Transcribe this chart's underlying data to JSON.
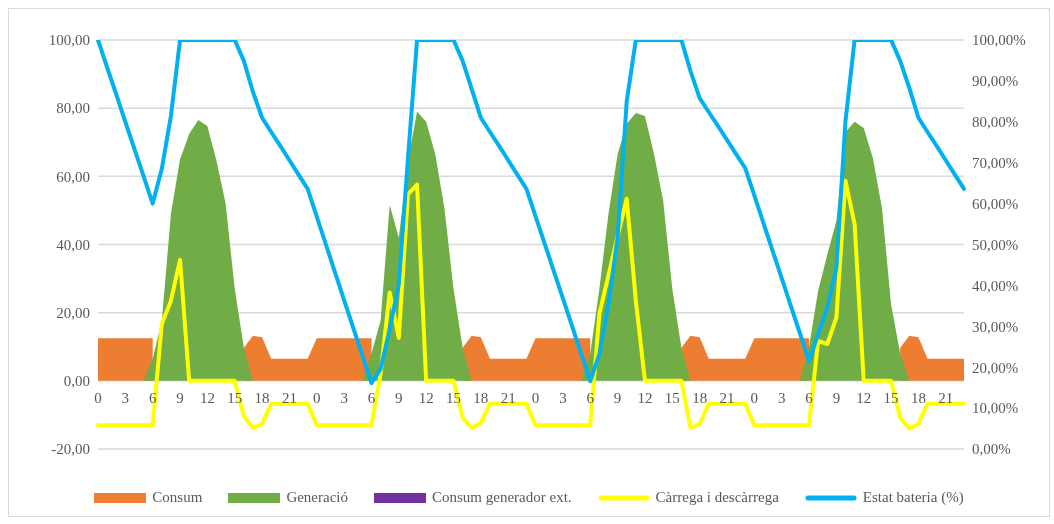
{
  "chart_data": {
    "type": "area",
    "categories": [
      "0",
      null,
      null,
      "3",
      null,
      null,
      "6",
      null,
      null,
      "9",
      null,
      null,
      "12",
      null,
      null,
      "15",
      null,
      null,
      "18",
      null,
      null,
      "21",
      null,
      null,
      "0",
      null,
      null,
      "3",
      null,
      null,
      "6",
      null,
      null,
      "9",
      null,
      null,
      "12",
      null,
      null,
      "15",
      null,
      null,
      "18",
      null,
      null,
      "21",
      null,
      null,
      "0",
      null,
      null,
      "3",
      null,
      null,
      "6",
      null,
      null,
      "9",
      null,
      null,
      "12",
      null,
      null,
      "15",
      null,
      null,
      "18",
      null,
      null,
      "21",
      null,
      null,
      "0",
      null,
      null,
      "3",
      null,
      null,
      "6",
      null,
      null,
      "9",
      null,
      null,
      "12",
      null,
      null,
      "15",
      null,
      null,
      "18",
      null,
      null,
      "21",
      null,
      null
    ],
    "series": [
      {
        "name": "Consum",
        "color": "#ed7d31",
        "values": [
          12.5,
          12.5,
          12.5,
          12.5,
          12.5,
          12.5,
          12.5,
          null,
          null,
          null,
          null,
          null,
          null,
          null,
          null,
          null,
          9.7,
          13.2,
          12.8,
          6.5,
          6.5,
          6.5,
          6.5,
          6.5,
          12.5,
          12.5,
          12.5,
          12.5,
          12.5,
          12.5,
          12.5,
          null,
          null,
          null,
          null,
          null,
          null,
          null,
          null,
          null,
          9.7,
          13.2,
          12.8,
          6.5,
          6.5,
          6.5,
          6.5,
          6.5,
          12.5,
          12.5,
          12.5,
          12.5,
          12.5,
          12.5,
          12.5,
          null,
          null,
          null,
          null,
          null,
          null,
          null,
          null,
          null,
          9.7,
          13.2,
          12.8,
          6.5,
          6.5,
          6.5,
          6.5,
          6.5,
          12.5,
          12.5,
          12.5,
          12.5,
          12.5,
          12.5,
          12.5,
          null,
          null,
          null,
          null,
          null,
          null,
          null,
          null,
          null,
          9.7,
          13.2,
          12.8,
          6.5,
          6.5,
          6.5,
          6.5,
          6.5
        ]
      },
      {
        "name": "Generació",
        "color": "#70ad47",
        "values": [
          0,
          0,
          0,
          0,
          0,
          0,
          6.4,
          17.6,
          49,
          65,
          72.4,
          76.5,
          74.8,
          64.5,
          52,
          27,
          9.7,
          0,
          0,
          0,
          0,
          0,
          0,
          0,
          0,
          0,
          0,
          0,
          0,
          0,
          8,
          17.6,
          51.6,
          42,
          64.5,
          79,
          76,
          66.5,
          50.7,
          27,
          9.7,
          0,
          0,
          0,
          0,
          0,
          0,
          0,
          0,
          0,
          0,
          0,
          0,
          0,
          8,
          27,
          49,
          66.5,
          75.4,
          78.6,
          77.7,
          66.5,
          52.8,
          27,
          9.7,
          0,
          0,
          0,
          0,
          0,
          0,
          0,
          0,
          0,
          0,
          0,
          0,
          0,
          10,
          26.4,
          37,
          47,
          73,
          76,
          74.2,
          65.4,
          50.7,
          22.5,
          8,
          0,
          0,
          0,
          0,
          0,
          0,
          0
        ]
      },
      {
        "name": "Consum generador ext.",
        "color": "#7030a0",
        "values": [
          null,
          null,
          null,
          null,
          null,
          null,
          null,
          null,
          null,
          null,
          null,
          null,
          null,
          null,
          null,
          null,
          null,
          null,
          null,
          null,
          null,
          null,
          null,
          null,
          null,
          null,
          null,
          null,
          null,
          null,
          null,
          null,
          null,
          null,
          null,
          null,
          null,
          null,
          null,
          null,
          null,
          null,
          null,
          null,
          null,
          null,
          null,
          null,
          null,
          null,
          null,
          null,
          null,
          null,
          null,
          null,
          null,
          null,
          null,
          null,
          null,
          null,
          null,
          null,
          null,
          null,
          null,
          null,
          null,
          null,
          null,
          null,
          null,
          null,
          null,
          null,
          null,
          null,
          null,
          null,
          null,
          null,
          null,
          null,
          null,
          null,
          null,
          null,
          null,
          null,
          null,
          null,
          null,
          null,
          null,
          null
        ]
      },
      {
        "name": "Càrrega i descàrrega",
        "type": "line",
        "color": "#ffff00",
        "values": [
          -13,
          -13,
          -13,
          -13,
          -13,
          -13,
          -13,
          16.7,
          23.5,
          35.5,
          0,
          0,
          0,
          0,
          0,
          0,
          -10.3,
          -13.8,
          -12.7,
          -6.7,
          -6.7,
          -6.7,
          -6.7,
          -6.7,
          -13,
          -13,
          -13,
          -13,
          -13,
          -13,
          -13,
          2,
          25.9,
          12.6,
          54.7,
          57.6,
          0,
          0,
          0,
          0,
          -10.8,
          -13.8,
          -12.4,
          -6.7,
          -6.7,
          -6.7,
          -6.7,
          -6.7,
          -13,
          -13,
          -13,
          -13,
          -13,
          -13,
          -13,
          19.6,
          31,
          42.3,
          53.4,
          23.5,
          0,
          0,
          0,
          0,
          0,
          -13.8,
          -12.7,
          -6.7,
          -6.7,
          -6.7,
          -6.7,
          -6.7,
          -13,
          -13,
          -13,
          -13,
          -13,
          -13,
          -13,
          11.7,
          10.8,
          18.5,
          58.7,
          46,
          0,
          0,
          0,
          0,
          -10.8,
          -14,
          -12.7,
          -6.7,
          -6.7,
          -6.7,
          -6.7,
          -6.7
        ]
      },
      {
        "name": "Estat bateria (%)",
        "type": "line",
        "axis": "y2",
        "color": "#00b0f0",
        "values": [
          100,
          93.3,
          86.7,
          80,
          73.3,
          66.7,
          60,
          68.5,
          81.4,
          100,
          100,
          100,
          100,
          100,
          100,
          100,
          94.9,
          87.3,
          81,
          77.5,
          74.1,
          70.6,
          67.1,
          63.6,
          56.8,
          50,
          43.2,
          36.4,
          29.6,
          22.9,
          16.1,
          19.6,
          29.3,
          40.3,
          71,
          100,
          100,
          100,
          100,
          100,
          94.9,
          88,
          81,
          77.5,
          74.1,
          70.6,
          67.1,
          63.6,
          56.9,
          50.2,
          43.5,
          36.8,
          30.1,
          23.3,
          16.6,
          23.2,
          35.5,
          51.6,
          85,
          100,
          100,
          100,
          100,
          100,
          100,
          92.4,
          85.8,
          82.4,
          79,
          75.6,
          72.1,
          68.7,
          62,
          55.2,
          48.5,
          41.8,
          35,
          28.3,
          21.5,
          28.1,
          34.5,
          44.3,
          80.2,
          100,
          100,
          100,
          100,
          100,
          94.9,
          88.3,
          81,
          77.5,
          74.1,
          70.6,
          67.1,
          63.6
        ]
      }
    ],
    "ylim": [
      -20,
      100
    ],
    "yticks": [
      {
        "value": -20,
        "label": "-20,00"
      },
      {
        "value": 0,
        "label": "0,00"
      },
      {
        "value": 20,
        "label": "20,00"
      },
      {
        "value": 40,
        "label": "40,00"
      },
      {
        "value": 60,
        "label": "60,00"
      },
      {
        "value": 80,
        "label": "80,00"
      },
      {
        "value": 100,
        "label": "100,00"
      }
    ],
    "y2lim": [
      0,
      100
    ],
    "y2ticks": [
      {
        "value": 0,
        "label": "0,00%"
      },
      {
        "value": 10,
        "label": "10,00%"
      },
      {
        "value": 20,
        "label": "20,00%"
      },
      {
        "value": 30,
        "label": "30,00%"
      },
      {
        "value": 40,
        "label": "40,00%"
      },
      {
        "value": 50,
        "label": "50,00%"
      },
      {
        "value": 60,
        "label": "60,00%"
      },
      {
        "value": 70,
        "label": "70,00%"
      },
      {
        "value": 80,
        "label": "80,00%"
      },
      {
        "value": 90,
        "label": "90,00%"
      },
      {
        "value": 100,
        "label": "100,00%"
      }
    ],
    "grid": "y",
    "legend": "bottom"
  }
}
